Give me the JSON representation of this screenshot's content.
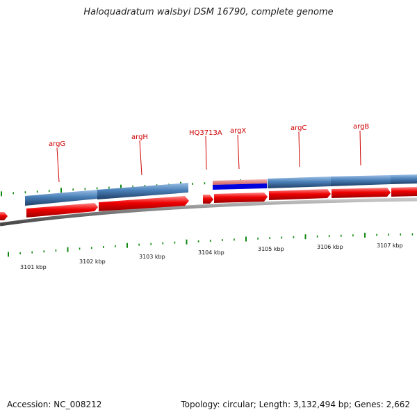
{
  "title": "Haloquadratum walsbyi DSM 16790, complete genome",
  "footer": {
    "accession": "Accession: NC_008212",
    "summary": "Topology: circular; Length: 3,132,494 bp; Genes: 2,662"
  },
  "colors": {
    "gene_label": "#cc0000",
    "feature_blue": "#4a80b8",
    "feature_red": "#ee0000",
    "feature_bright_blue": "#0000dd",
    "backbone": "#808080",
    "tick": "#118811"
  },
  "genes": [
    {
      "label": "argG"
    },
    {
      "label": "argH"
    },
    {
      "label": "HQ3713A"
    },
    {
      "label": "argX"
    },
    {
      "label": "argC"
    },
    {
      "label": "argB"
    }
  ],
  "kbp_labels": [
    "3101 kbp",
    "3102 kbp",
    "3103 kbp",
    "3104 kbp",
    "3105 kbp",
    "3106 kbp",
    "3107 kbp"
  ]
}
